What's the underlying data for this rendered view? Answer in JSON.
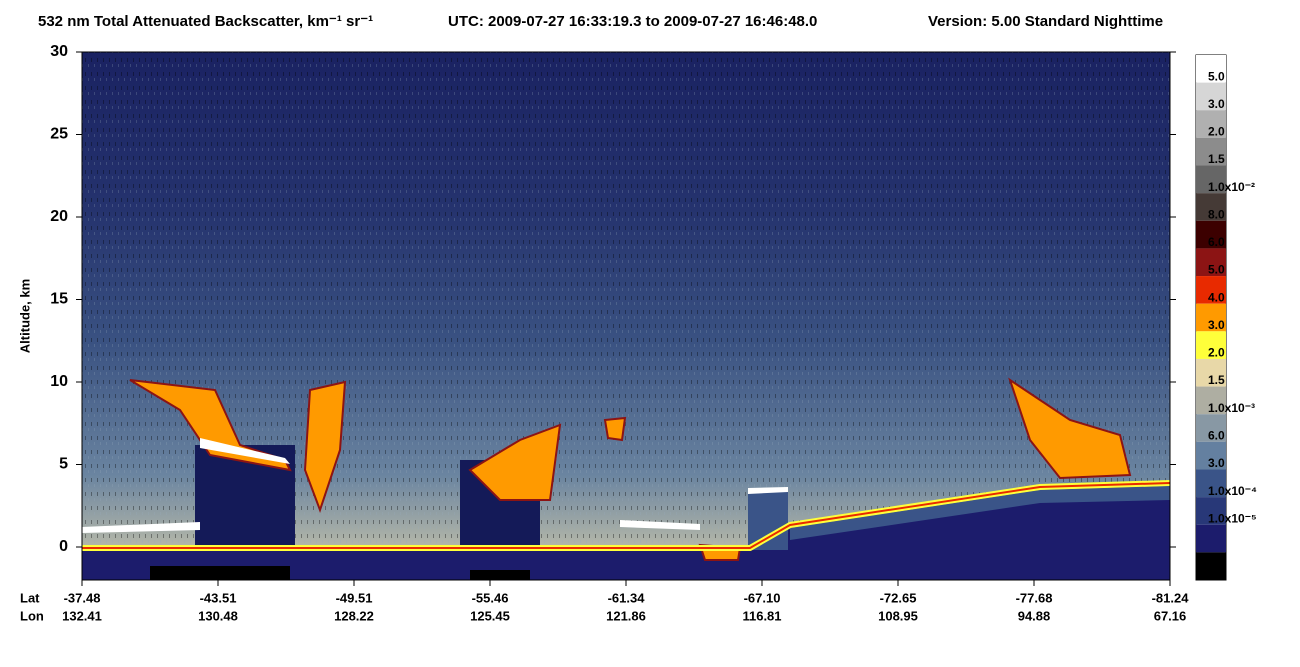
{
  "chart_data": {
    "type": "curtain",
    "title": "532 nm Total Attenuated Backscatter, km⁻¹ sr⁻¹",
    "time_range": "UTC:  2009-07-27 16:33:19.3  to  2009-07-27 16:46:48.0",
    "version": "Version: 5.00  Standard  Nighttime",
    "ylabel": "Altitude, km",
    "ylim": [
      -2,
      30
    ],
    "yticks": [
      0,
      5,
      10,
      15,
      20,
      25,
      30
    ],
    "x_rows": [
      "Lat",
      "Lon"
    ],
    "lat": [
      "-37.48",
      "-43.51",
      "-49.51",
      "-55.46",
      "-61.34",
      "-67.10",
      "-72.65",
      "-77.68",
      "-81.24"
    ],
    "lon": [
      "132.41",
      "130.48",
      "128.22",
      "125.45",
      "121.86",
      "116.81",
      "108.95",
      "94.88",
      "67.16"
    ],
    "colorbar": {
      "colors": [
        "#ffffff",
        "#d6d6d6",
        "#b0b0b0",
        "#8c8c8c",
        "#666666",
        "#453a36",
        "#3c0000",
        "#8c1414",
        "#e82a00",
        "#ff9a00",
        "#ffff3a",
        "#e8d8a8",
        "#aeaea2",
        "#8898a4",
        "#6480a0",
        "#3a5488",
        "#283878",
        "#1c1c6c",
        "#000000"
      ],
      "labels": [
        "5.0",
        "3.0",
        "2.0",
        "1.5",
        "1.0x10⁻²",
        "8.0",
        "6.0",
        "5.0",
        "4.0",
        "3.0",
        "2.0",
        "1.5",
        "1.0x10⁻³",
        "6.0",
        "3.0",
        "1.0x10⁻⁴",
        "1.0x10⁻⁵",
        null,
        null
      ]
    }
  }
}
